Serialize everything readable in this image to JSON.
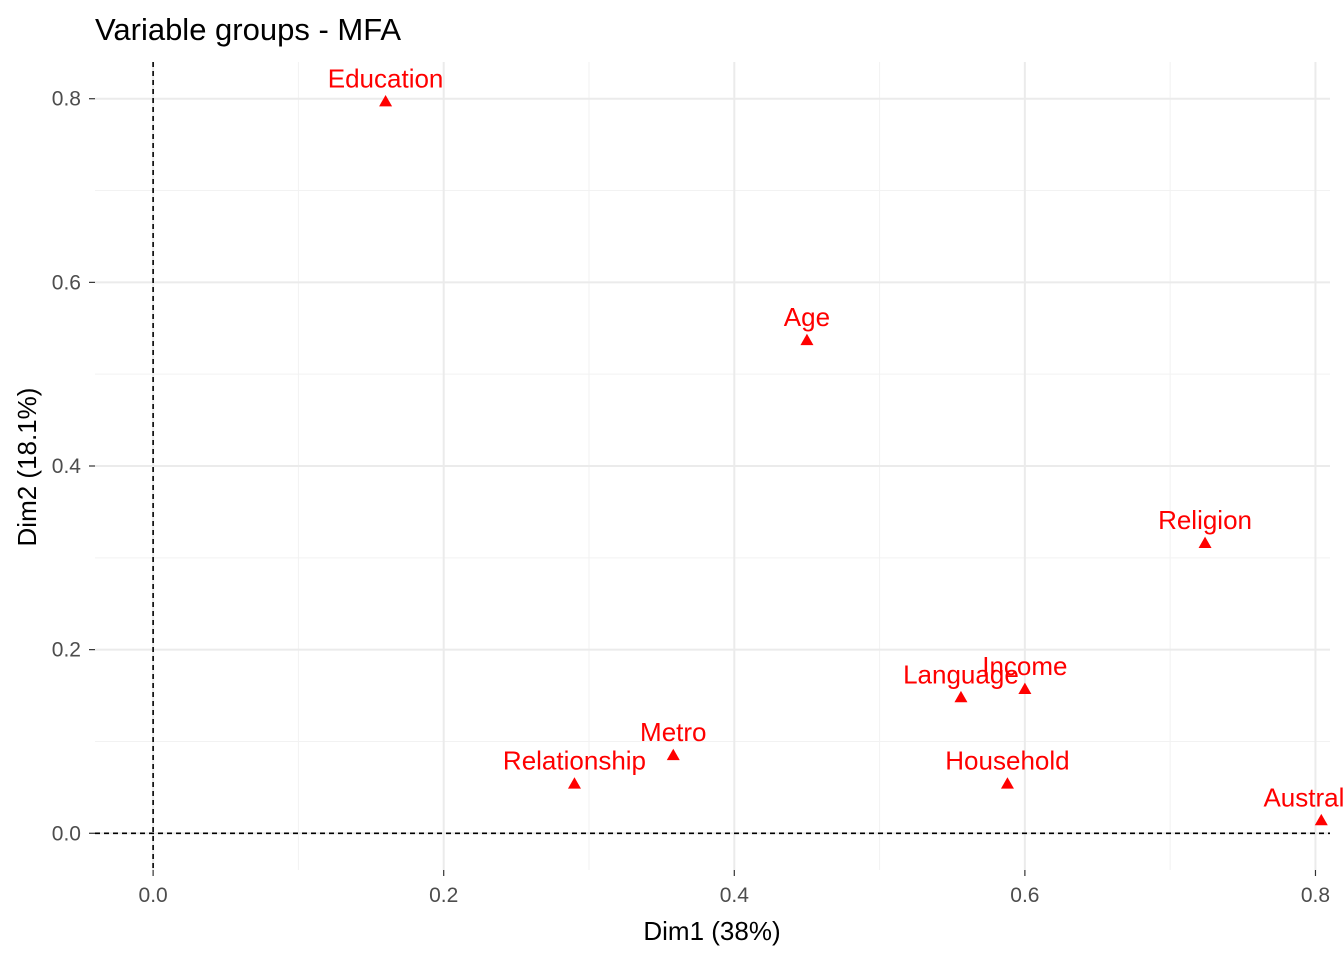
{
  "chart_data": {
    "type": "scatter",
    "title": "Variable groups - MFA",
    "xlabel": "Dim1 (38%)",
    "ylabel": "Dim2 (18.1%)",
    "xlim": [
      -0.04,
      0.81
    ],
    "ylim": [
      -0.04,
      0.84
    ],
    "x_ticks": [
      0.0,
      0.2,
      0.4,
      0.6,
      0.8
    ],
    "x_tick_labels": [
      "0.0",
      "0.2",
      "0.4",
      "0.6",
      "0.8"
    ],
    "y_ticks": [
      0.0,
      0.2,
      0.4,
      0.6,
      0.8
    ],
    "y_tick_labels": [
      "0.0",
      "0.2",
      "0.4",
      "0.6",
      "0.8"
    ],
    "grid": true,
    "reference_lines": {
      "x": 0,
      "y": 0,
      "style": "dashed"
    },
    "marker": "triangle",
    "color": "#ff0000",
    "points": [
      {
        "label": "Education",
        "x": 0.16,
        "y": 0.797
      },
      {
        "label": "Age",
        "x": 0.45,
        "y": 0.537
      },
      {
        "label": "Religion",
        "x": 0.724,
        "y": 0.316
      },
      {
        "label": "Language",
        "x": 0.556,
        "y": 0.148
      },
      {
        "label": "Income",
        "x": 0.6,
        "y": 0.157
      },
      {
        "label": "Metro",
        "x": 0.358,
        "y": 0.085
      },
      {
        "label": "Relationship",
        "x": 0.29,
        "y": 0.054
      },
      {
        "label": "Household",
        "x": 0.588,
        "y": 0.054
      },
      {
        "label": "Australian",
        "x": 0.804,
        "y": 0.014
      }
    ]
  }
}
